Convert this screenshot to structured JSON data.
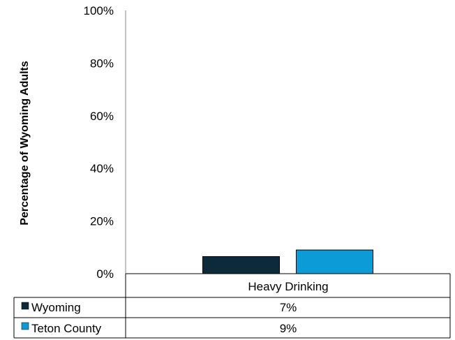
{
  "chart_data": {
    "type": "bar",
    "title": "",
    "xlabel": "",
    "ylabel": "Percentage of Wyoming Adults",
    "ylim": [
      0,
      100
    ],
    "yticks": [
      "0%",
      "20%",
      "40%",
      "60%",
      "80%",
      "100%"
    ],
    "categories": [
      "Heavy Drinking"
    ],
    "grid": false,
    "legend": "data-table-left",
    "series": [
      {
        "name": "Wyoming",
        "values": [
          6.5
        ],
        "label": "7%",
        "color": "#0d2a3a"
      },
      {
        "name": "Teton County",
        "values": [
          9
        ],
        "label": "9%",
        "color": "#0b9cd8"
      }
    ]
  }
}
